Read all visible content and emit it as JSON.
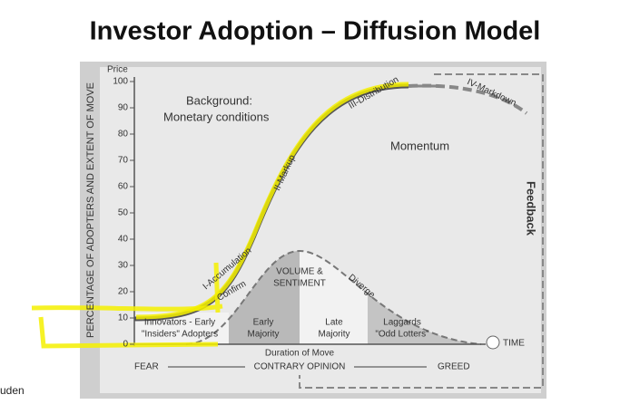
{
  "title": "Investor Adoption – Diffusion Model",
  "figure": {
    "y_axis": {
      "unit": "Price",
      "label": "PERCENTAGE OF ADOPTERS AND EXTENT OF MOVE",
      "ticks": [
        0,
        10,
        20,
        30,
        40,
        50,
        60,
        70,
        80,
        90,
        100
      ]
    },
    "background": [
      "Background:",
      "Monetary conditions"
    ],
    "momentum": "Momentum",
    "feedback": "Feedback",
    "phases": [
      "I-Accumulation",
      "II-Markup",
      "III-Distribution",
      "IV-Markdown"
    ],
    "confirm": "Confirm",
    "diverge": "Diverge",
    "volume": [
      "VOLUME &",
      "SENTIMENT"
    ],
    "groups": [
      [
        "Innovators - Early",
        "\"Insiders\" Adopters"
      ],
      [
        "Early",
        "Majority"
      ],
      [
        "Late",
        "Majority"
      ],
      [
        "Laggards",
        "\"Odd Lotters\""
      ]
    ],
    "time": "TIME",
    "duration": "Duration of Move",
    "sentiment_axis": [
      "FEAR",
      "CONTRARY OPINION",
      "GREED"
    ]
  },
  "footer_fragment": "uden"
}
